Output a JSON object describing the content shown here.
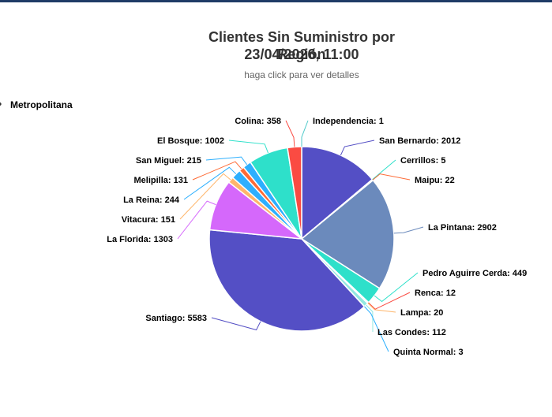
{
  "header": {
    "title_line1": "Clientes Sin Suministro por Región",
    "title_line2": "23/04/2026, 11:00",
    "subtitle": "haga click para ver detalles"
  },
  "legend": {
    "label": "Metropolitana"
  },
  "chart_data": {
    "type": "pie",
    "title": "Clientes Sin Suministro por Región 23/04/2026, 11:00",
    "subtitle": "haga click para ver detalles",
    "legend_position": "top-left",
    "series": [
      {
        "name": "Metropolitana",
        "points": [
          {
            "name": "Independencia",
            "value": 1,
            "color": "#4ec9c9"
          },
          {
            "name": "San Bernardo",
            "value": 2012,
            "color": "#544fc5"
          },
          {
            "name": "Cerrillos",
            "value": 5,
            "color": "#2ee0ca"
          },
          {
            "name": "Maipu",
            "value": 22,
            "color": "#fe6a35"
          },
          {
            "name": "La Pintana",
            "value": 2902,
            "color": "#6b8abc"
          },
          {
            "name": "Pedro Aguirre Cerda",
            "value": 449,
            "color": "#2ee0ca"
          },
          {
            "name": "Renca",
            "value": 12,
            "color": "#fa4b42"
          },
          {
            "name": "Lampa",
            "value": 20,
            "color": "#feb56a"
          },
          {
            "name": "Las Condes",
            "value": 112,
            "color": "#91e8e1"
          },
          {
            "name": "Quinta Normal",
            "value": 3,
            "color": "#2caffe"
          },
          {
            "name": "Santiago",
            "value": 5583,
            "color": "#544fc5"
          },
          {
            "name": "La Florida",
            "value": 1303,
            "color": "#d568fb"
          },
          {
            "name": "Vitacura",
            "value": 151,
            "color": "#feb56a"
          },
          {
            "name": "La Reina",
            "value": 244,
            "color": "#2caffe"
          },
          {
            "name": "Melipilla",
            "value": 131,
            "color": "#fe6a35"
          },
          {
            "name": "San Miguel",
            "value": 215,
            "color": "#2caffe"
          },
          {
            "name": "El Bosque",
            "value": 1002,
            "color": "#2ee0ca"
          },
          {
            "name": "Colina",
            "value": 358,
            "color": "#fa4b42"
          }
        ]
      }
    ]
  }
}
